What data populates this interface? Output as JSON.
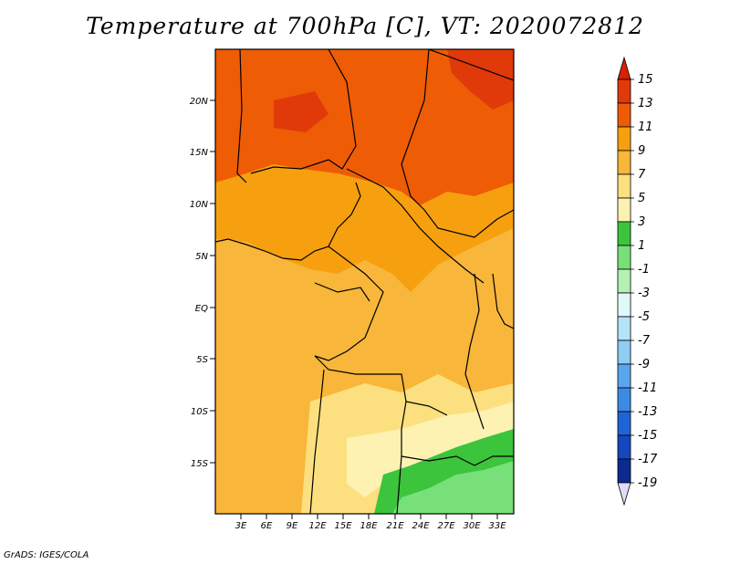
{
  "title": "Temperature at 700hPa [C], VT: 2020072812",
  "credit": "GrADS: IGES/COLA",
  "map": {
    "lat_labels": [
      "20N",
      "15N",
      "10N",
      "5N",
      "EQ",
      "5S",
      "10S",
      "15S"
    ],
    "lon_labels": [
      "3E",
      "6E",
      "9E",
      "12E",
      "15E",
      "18E",
      "21E",
      "24E",
      "27E",
      "30E",
      "33E"
    ]
  },
  "colorbar": {
    "levels": [
      "15",
      "13",
      "11",
      "9",
      "7",
      "5",
      "3",
      "1",
      "-1",
      "-3",
      "-5",
      "-7",
      "-9",
      "-11",
      "-13",
      "-15",
      "-17",
      "-19"
    ],
    "colors": {
      "top_arrow": "#d92000",
      "15": "#e03a0a",
      "13": "#ee5c06",
      "11": "#f6a010",
      "9": "#f8b63a",
      "7": "#fce080",
      "5": "#fdf2b2",
      "3": "#3cc43c",
      "1": "#78e078",
      "-1": "#b4f0b4",
      "-3": "#e0f8f8",
      "-5": "#b4e4f8",
      "-7": "#90ccf4",
      "-9": "#5aa6ec",
      "-11": "#3c8ae4",
      "-13": "#1e64d8",
      "-15": "#1448bc",
      "-17": "#0c2a90",
      "bottom_arrow": "#e0dcf8"
    }
  }
}
